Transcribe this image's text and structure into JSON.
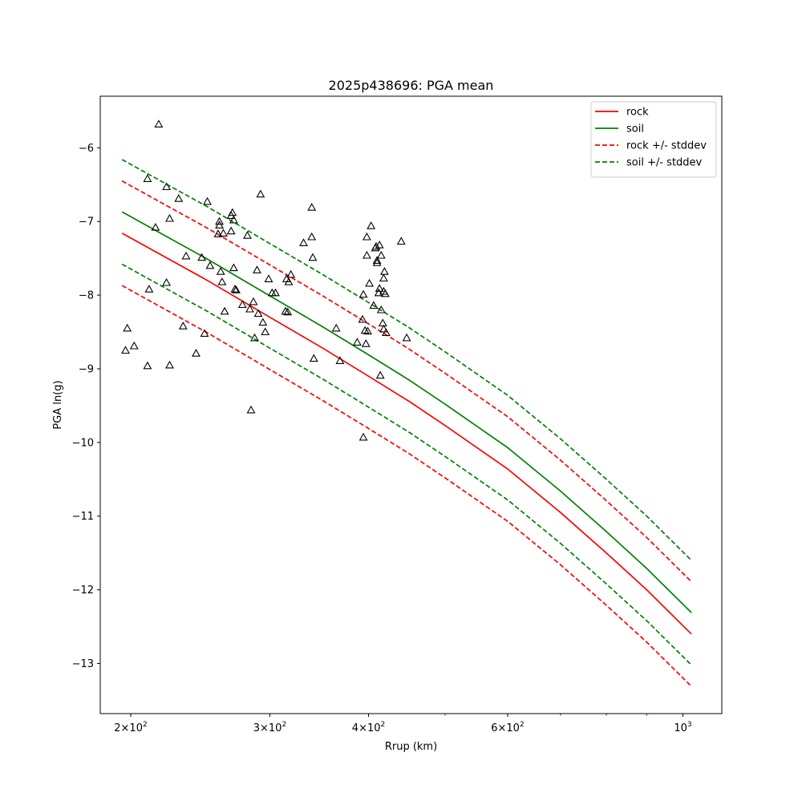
{
  "chart_data": {
    "type": "line",
    "title": "2025p438696: PGA mean",
    "xlabel": "Rrup (km)",
    "ylabel": "PGA ln(g)",
    "xscale": "log",
    "xlim": [
      183,
      1120
    ],
    "ylim": [
      -13.68,
      -5.3
    ],
    "grid": false,
    "legend_position": "top-right",
    "x_ticks": [
      {
        "value": 200,
        "base": "2",
        "exp": "2"
      },
      {
        "value": 300,
        "base": "3",
        "exp": "2"
      },
      {
        "value": 400,
        "base": "4",
        "exp": "2"
      },
      {
        "value": 600,
        "base": "6",
        "exp": "2"
      },
      {
        "value": 1000,
        "base": "10",
        "exp": "3"
      }
    ],
    "x_minor_ticks": [
      500,
      700,
      800,
      900
    ],
    "y_ticks": [
      {
        "value": -6,
        "label": "−6"
      },
      {
        "value": -7,
        "label": "−7"
      },
      {
        "value": -8,
        "label": "−8"
      },
      {
        "value": -9,
        "label": "−9"
      },
      {
        "value": -10,
        "label": "−10"
      },
      {
        "value": -11,
        "label": "−11"
      },
      {
        "value": -12,
        "label": "−12"
      },
      {
        "value": -13,
        "label": "−13"
      }
    ],
    "series": [
      {
        "name": "rock",
        "color": "#ff0000",
        "style": "solid",
        "x": [
          195,
          250,
          300,
          350,
          400,
          450,
          500,
          600,
          700,
          800,
          900,
          1025
        ],
        "y": [
          -7.16,
          -7.8,
          -8.3,
          -8.72,
          -9.1,
          -9.44,
          -9.77,
          -10.36,
          -10.95,
          -11.5,
          -12.0,
          -12.6
        ]
      },
      {
        "name": "soil",
        "color": "#008000",
        "style": "solid",
        "x": [
          195,
          250,
          300,
          350,
          400,
          450,
          500,
          600,
          700,
          800,
          900,
          1025
        ],
        "y": [
          -6.87,
          -7.51,
          -8.01,
          -8.43,
          -8.81,
          -9.15,
          -9.48,
          -10.07,
          -10.66,
          -11.21,
          -11.71,
          -12.31
        ]
      },
      {
        "name": "rock +/- stddev",
        "color": "#ff0000",
        "style": "dashed",
        "x": [
          195,
          250,
          300,
          350,
          400,
          450,
          500,
          600,
          700,
          800,
          900,
          1025
        ],
        "y": [
          -6.45,
          -7.09,
          -7.59,
          -8.01,
          -8.39,
          -8.73,
          -9.06,
          -9.65,
          -10.24,
          -10.79,
          -11.29,
          -11.89
        ]
      },
      {
        "name": "",
        "color": "#ff0000",
        "style": "dashed",
        "x": [
          195,
          250,
          300,
          350,
          400,
          450,
          500,
          600,
          700,
          800,
          900,
          1025
        ],
        "y": [
          -7.87,
          -8.51,
          -9.01,
          -9.43,
          -9.81,
          -10.15,
          -10.48,
          -11.07,
          -11.66,
          -12.21,
          -12.71,
          -13.31
        ]
      },
      {
        "name": "soil +/- stddev",
        "color": "#008000",
        "style": "dashed",
        "x": [
          195,
          250,
          300,
          350,
          400,
          450,
          500,
          600,
          700,
          800,
          900,
          1025
        ],
        "y": [
          -6.16,
          -6.8,
          -7.3,
          -7.72,
          -8.1,
          -8.44,
          -8.77,
          -9.36,
          -9.95,
          -10.5,
          -11.0,
          -11.6
        ]
      },
      {
        "name": "",
        "color": "#008000",
        "style": "dashed",
        "x": [
          195,
          250,
          300,
          350,
          400,
          450,
          500,
          600,
          700,
          800,
          900,
          1025
        ],
        "y": [
          -7.58,
          -8.22,
          -8.72,
          -9.14,
          -9.52,
          -9.86,
          -10.19,
          -10.78,
          -11.37,
          -11.92,
          -12.42,
          -13.02
        ]
      }
    ],
    "observations": {
      "marker": "triangle",
      "color": "#000000",
      "points": [
        [
          217,
          -5.68
        ],
        [
          210,
          -6.42
        ],
        [
          222,
          -6.53
        ],
        [
          230,
          -6.69
        ],
        [
          224,
          -6.96
        ],
        [
          215,
          -7.08
        ],
        [
          198,
          -8.45
        ],
        [
          202,
          -8.69
        ],
        [
          197,
          -8.75
        ],
        [
          210,
          -8.96
        ],
        [
          224,
          -8.95
        ],
        [
          222,
          -7.83
        ],
        [
          211,
          -7.92
        ],
        [
          233,
          -8.42
        ],
        [
          235,
          -7.47
        ],
        [
          242,
          -8.79
        ],
        [
          246,
          -7.49
        ],
        [
          248,
          -8.52
        ],
        [
          250,
          -6.73
        ],
        [
          252,
          -7.6
        ],
        [
          258,
          -7.17
        ],
        [
          259,
          -7.0
        ],
        [
          259,
          -7.05
        ],
        [
          260,
          -7.68
        ],
        [
          261,
          -7.82
        ],
        [
          262,
          -7.16
        ],
        [
          263,
          -8.22
        ],
        [
          268,
          -6.92
        ],
        [
          268,
          -7.13
        ],
        [
          269,
          -6.88
        ],
        [
          270,
          -6.98
        ],
        [
          270,
          -7.63
        ],
        [
          271,
          -7.92
        ],
        [
          272,
          -7.93
        ],
        [
          277,
          -8.13
        ],
        [
          281,
          -7.19
        ],
        [
          283,
          -8.19
        ],
        [
          284,
          -9.56
        ],
        [
          286,
          -8.09
        ],
        [
          287,
          -8.58
        ],
        [
          289,
          -7.66
        ],
        [
          290,
          -8.25
        ],
        [
          292,
          -6.63
        ],
        [
          294,
          -8.37
        ],
        [
          296,
          -8.5
        ],
        [
          299,
          -7.78
        ],
        [
          302,
          -7.97
        ],
        [
          305,
          -7.97
        ],
        [
          314,
          -8.22
        ],
        [
          315,
          -7.78
        ],
        [
          316,
          -8.23
        ],
        [
          317,
          -7.82
        ],
        [
          319,
          -7.72
        ],
        [
          331,
          -7.29
        ],
        [
          339,
          -6.81
        ],
        [
          339,
          -7.21
        ],
        [
          340,
          -7.49
        ],
        [
          341,
          -8.86
        ],
        [
          364,
          -8.45
        ],
        [
          368,
          -8.89
        ],
        [
          387,
          -8.64
        ],
        [
          393,
          -8.33
        ],
        [
          394,
          -7.99
        ],
        [
          394,
          -9.93
        ],
        [
          396,
          -8.48
        ],
        [
          397,
          -8.66
        ],
        [
          398,
          -7.21
        ],
        [
          398,
          -7.46
        ],
        [
          399,
          -8.49
        ],
        [
          401,
          -7.84
        ],
        [
          403,
          -7.06
        ],
        [
          406,
          -8.14
        ],
        [
          408,
          -7.36
        ],
        [
          409,
          -7.34
        ],
        [
          410,
          -7.53
        ],
        [
          410,
          -7.56
        ],
        [
          412,
          -7.97
        ],
        [
          413,
          -7.32
        ],
        [
          413,
          -7.91
        ],
        [
          414,
          -9.09
        ],
        [
          415,
          -7.46
        ],
        [
          415,
          -8.2
        ],
        [
          417,
          -8.38
        ],
        [
          418,
          -7.77
        ],
        [
          418,
          -7.95
        ],
        [
          418,
          -8.46
        ],
        [
          419,
          -7.68
        ],
        [
          420,
          -7.98
        ],
        [
          421,
          -8.51
        ],
        [
          440,
          -7.27
        ],
        [
          447,
          -8.58
        ]
      ]
    }
  }
}
